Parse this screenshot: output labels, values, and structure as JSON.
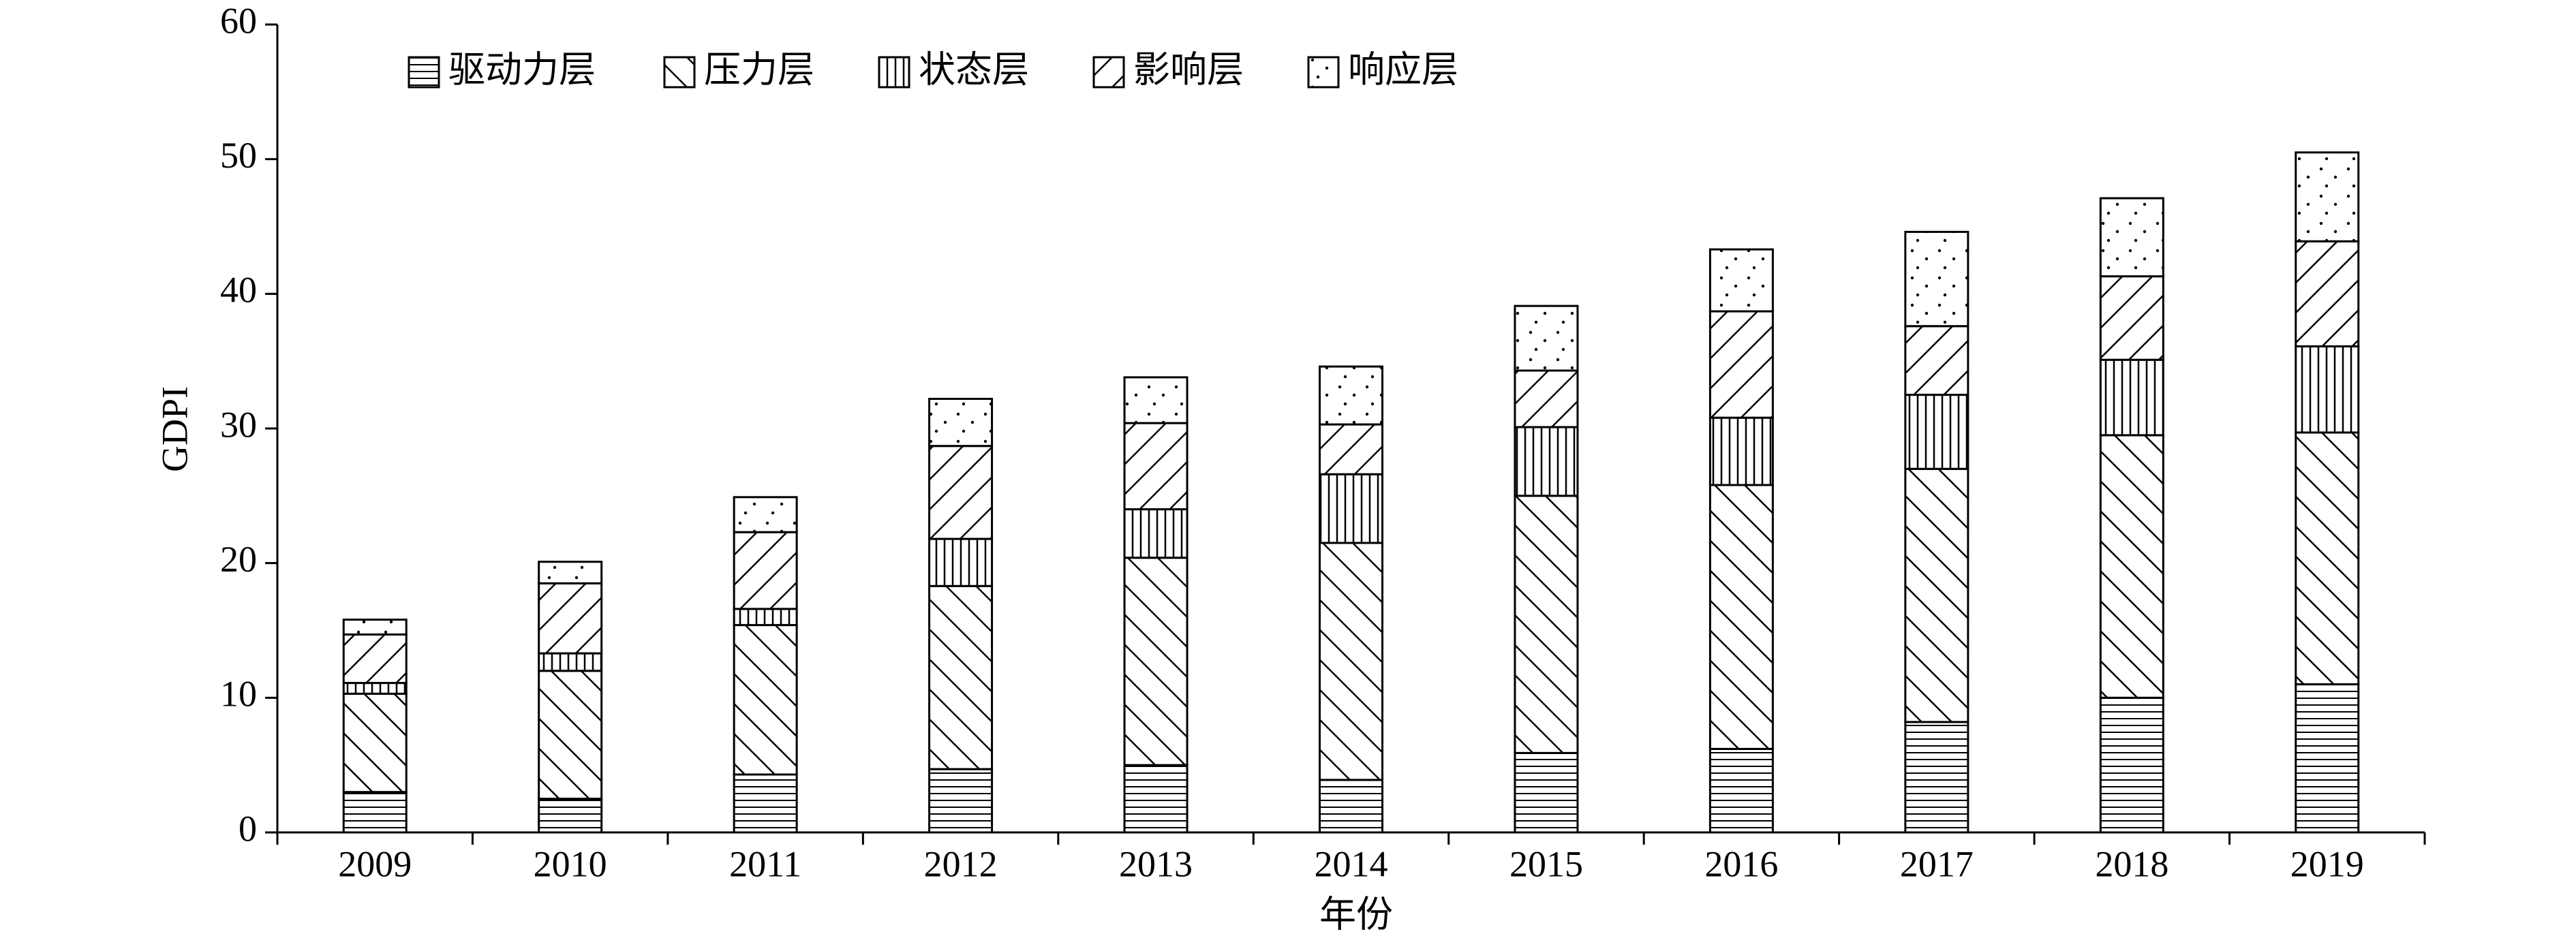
{
  "chart_data": {
    "type": "stacked-bar",
    "x_label": "年份",
    "y_label": "GDPI",
    "categories": [
      "2009",
      "2010",
      "2011",
      "2012",
      "2013",
      "2014",
      "2015",
      "2016",
      "2017",
      "2018",
      "2019"
    ],
    "ylim": [
      0,
      60
    ],
    "yticks": [
      0,
      10,
      20,
      30,
      40,
      50,
      60
    ],
    "series": [
      {
        "name": "驱动力层",
        "pattern": "horizontal",
        "color": "#000000",
        "values": [
          3.0,
          2.5,
          4.3,
          4.7,
          5.0,
          3.9,
          5.9,
          6.2,
          8.2,
          10.0,
          11.0
        ]
      },
      {
        "name": "压力层",
        "pattern": "backslash",
        "color": "#000000",
        "values": [
          7.3,
          9.5,
          11.1,
          13.6,
          15.4,
          17.6,
          19.1,
          19.6,
          18.8,
          19.5,
          18.7
        ]
      },
      {
        "name": "状态层",
        "pattern": "vertical",
        "color": "#000000",
        "values": [
          0.8,
          1.3,
          1.2,
          3.5,
          3.6,
          5.1,
          5.1,
          5.0,
          5.5,
          5.6,
          6.4
        ]
      },
      {
        "name": "影响层",
        "pattern": "slash",
        "color": "#000000",
        "values": [
          3.6,
          5.2,
          5.7,
          6.9,
          6.4,
          3.7,
          4.2,
          7.9,
          5.1,
          6.2,
          7.8
        ]
      },
      {
        "name": "响应层",
        "pattern": "dots",
        "color": "#000000",
        "values": [
          1.1,
          1.6,
          2.6,
          3.5,
          3.4,
          4.3,
          4.8,
          4.6,
          7.0,
          5.8,
          6.6
        ]
      }
    ]
  }
}
